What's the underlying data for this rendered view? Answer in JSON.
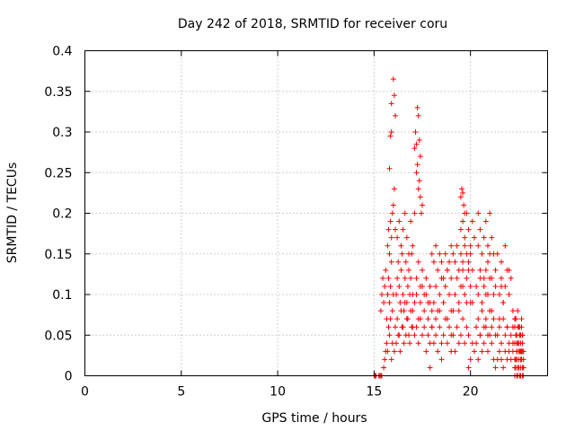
{
  "chart_data": {
    "type": "scatter",
    "title": "Day 242 of 2018, SRMTID for receiver coru",
    "xlabel": "GPS time / hours",
    "ylabel": "SRMTID / TECUs",
    "xlim": [
      0,
      24
    ],
    "ylim": [
      0,
      0.4
    ],
    "xticks": [
      0,
      5,
      10,
      15,
      20
    ],
    "xtick_labels": [
      "0",
      "5",
      "10",
      "15",
      "20"
    ],
    "yticks": [
      0,
      0.05,
      0.1,
      0.15,
      0.2,
      0.25,
      0.3,
      0.35,
      0.4
    ],
    "ytick_labels": [
      "0",
      "0.05",
      "0.1",
      "0.15",
      "0.2",
      "0.25",
      "0.3",
      "0.35",
      "0.4"
    ],
    "grid": true,
    "marker": "plus",
    "color": "#ff0000",
    "series": [
      {
        "name": "SRMTID",
        "x": [
          15.0,
          15.05,
          15.1,
          15.25,
          15.3,
          15.35,
          15.4,
          15.5,
          15.55,
          15.6,
          15.65,
          15.7,
          15.75,
          15.8,
          15.85,
          15.9,
          15.95,
          15.35,
          15.4,
          15.45,
          15.5,
          15.55,
          15.6,
          15.65,
          15.7,
          15.75,
          15.8,
          15.85,
          15.9,
          15.95,
          16.0,
          15.7,
          15.75,
          15.8,
          15.85,
          15.9,
          15.95,
          16.0,
          16.05,
          16.1,
          15.8,
          15.85,
          15.9,
          15.9,
          16.0,
          16.05,
          16.1,
          16.15,
          16.2,
          16.25,
          16.3,
          16.35,
          16.4,
          16.45,
          16.5,
          16.55,
          16.6,
          16.65,
          16.7,
          16.75,
          16.8,
          16.85,
          16.9,
          16.95,
          17.0,
          16.1,
          16.2,
          16.3,
          16.4,
          16.5,
          16.6,
          16.7,
          16.8,
          16.9,
          17.0,
          16.2,
          16.3,
          16.4,
          16.5,
          16.6,
          16.7,
          16.8,
          16.9,
          17.0,
          17.1,
          16.05,
          16.15,
          16.25,
          16.35,
          16.45,
          16.55,
          16.65,
          16.75,
          16.85,
          16.95,
          17.1,
          17.15,
          17.2,
          17.25,
          17.3,
          17.35,
          17.4,
          17.2,
          17.25,
          17.3,
          17.35,
          17.4,
          17.45,
          17.5,
          17.2,
          17.3,
          17.4,
          17.5,
          17.6,
          17.7,
          17.8,
          17.9,
          18.0,
          17.1,
          17.2,
          17.3,
          17.4,
          17.5,
          17.6,
          17.7,
          17.8,
          17.9,
          18.0,
          17.0,
          17.1,
          17.2,
          17.3,
          17.4,
          17.5,
          17.6,
          17.7,
          17.8,
          17.9,
          18.0,
          18.1,
          18.2,
          18.3,
          18.4,
          18.5,
          18.6,
          18.7,
          18.8,
          18.9,
          19.0,
          18.1,
          18.2,
          18.3,
          18.4,
          18.5,
          18.6,
          18.7,
          18.8,
          18.9,
          19.0,
          18.0,
          18.1,
          18.2,
          18.3,
          18.4,
          18.5,
          18.6,
          18.7,
          18.8,
          18.9,
          19.0,
          18.2,
          18.4,
          18.6,
          18.8,
          19.0,
          17.9,
          18.5,
          19.0,
          19.1,
          19.2,
          19.3,
          19.4,
          19.5,
          19.6,
          19.7,
          19.8,
          19.9,
          20.0,
          20.1,
          19.5,
          19.55,
          19.6,
          19.65,
          19.7,
          19.5,
          19.6,
          19.7,
          19.8,
          19.9,
          20.0,
          20.1,
          20.2,
          19.1,
          19.2,
          19.3,
          19.4,
          19.5,
          19.6,
          19.7,
          19.8,
          19.9,
          20.0,
          20.1,
          19.1,
          19.2,
          19.3,
          19.4,
          19.5,
          19.6,
          19.7,
          19.8,
          19.9,
          20.0,
          19.2,
          19.4,
          19.6,
          19.8,
          20.0,
          19.9,
          20.1,
          20.3,
          20.4,
          20.5,
          20.6,
          20.7,
          20.8,
          20.9,
          21.0,
          21.1,
          21.2,
          20.4,
          20.5,
          20.6,
          20.7,
          20.8,
          20.9,
          21.0,
          21.1,
          21.2,
          21.3,
          20.3,
          20.4,
          20.5,
          20.6,
          20.7,
          20.8,
          20.9,
          21.0,
          21.1,
          21.2,
          21.3,
          20.2,
          20.3,
          20.4,
          20.5,
          20.6,
          20.7,
          20.8,
          20.9,
          21.0,
          21.1,
          21.2,
          20.5,
          20.7,
          20.9,
          21.1,
          21.3,
          20.4,
          21.0,
          20.8,
          21.5,
          21.6,
          21.7,
          21.8,
          21.9,
          22.0,
          22.1,
          22.2,
          21.4,
          21.5,
          21.6,
          21.7,
          21.8,
          21.9,
          22.0,
          22.1,
          22.2,
          21.3,
          21.4,
          21.5,
          21.6,
          21.7,
          21.8,
          21.9,
          22.0,
          22.1,
          22.2,
          21.4,
          21.6,
          21.8,
          22.0,
          21.5,
          21.7,
          21.9,
          21.6,
          22.3,
          22.35,
          22.4,
          22.45,
          22.5,
          22.55,
          22.6,
          22.65,
          22.7,
          22.75,
          22.3,
          22.35,
          22.4,
          22.45,
          22.5,
          22.55,
          22.6,
          22.65,
          22.7,
          22.75,
          22.3,
          22.35,
          22.4,
          22.45,
          22.5,
          22.55,
          22.6,
          22.65,
          22.7,
          22.75,
          22.3,
          22.35,
          22.4,
          22.45,
          22.5,
          22.55,
          22.6,
          22.65,
          22.7,
          22.75,
          22.3,
          22.4,
          22.5,
          22.6,
          22.7,
          22.75,
          22.35,
          22.45,
          22.55,
          22.65,
          22.7,
          22.4,
          22.5,
          22.6,
          22.2,
          22.3
        ],
        "y": [
          0.0,
          0.0,
          0.0,
          0.0,
          0.0,
          0.0,
          0.0,
          0.01,
          0.02,
          0.03,
          0.04,
          0.03,
          0.06,
          0.05,
          0.07,
          0.02,
          0.04,
          0.08,
          0.1,
          0.12,
          0.09,
          0.11,
          0.13,
          0.07,
          0.1,
          0.12,
          0.09,
          0.11,
          0.14,
          0.08,
          0.1,
          0.16,
          0.18,
          0.15,
          0.19,
          0.17,
          0.2,
          0.21,
          0.23,
          0.18,
          0.255,
          0.295,
          0.3,
          0.335,
          0.365,
          0.345,
          0.32,
          0.1,
          0.12,
          0.14,
          0.11,
          0.09,
          0.13,
          0.15,
          0.1,
          0.08,
          0.12,
          0.14,
          0.09,
          0.11,
          0.13,
          0.1,
          0.12,
          0.15,
          0.1,
          0.06,
          0.07,
          0.05,
          0.08,
          0.06,
          0.09,
          0.07,
          0.05,
          0.08,
          0.06,
          0.17,
          0.19,
          0.16,
          0.18,
          0.2,
          0.17,
          0.15,
          0.19,
          0.16,
          0.2,
          0.03,
          0.04,
          0.05,
          0.03,
          0.06,
          0.04,
          0.05,
          0.07,
          0.04,
          0.06,
          0.28,
          0.3,
          0.285,
          0.33,
          0.32,
          0.29,
          0.27,
          0.25,
          0.26,
          0.23,
          0.24,
          0.22,
          0.2,
          0.21,
          0.12,
          0.14,
          0.11,
          0.13,
          0.1,
          0.12,
          0.09,
          0.11,
          0.08,
          0.05,
          0.06,
          0.04,
          0.07,
          0.05,
          0.06,
          0.03,
          0.05,
          0.04,
          0.06,
          0.08,
          0.09,
          0.1,
          0.07,
          0.09,
          0.11,
          0.08,
          0.1,
          0.07,
          0.09,
          0.06,
          0.09,
          0.11,
          0.08,
          0.1,
          0.12,
          0.09,
          0.11,
          0.13,
          0.1,
          0.12,
          0.04,
          0.05,
          0.03,
          0.06,
          0.04,
          0.05,
          0.07,
          0.04,
          0.06,
          0.05,
          0.15,
          0.14,
          0.16,
          0.13,
          0.15,
          0.14,
          0.12,
          0.15,
          0.13,
          0.14,
          0.16,
          0.07,
          0.08,
          0.09,
          0.07,
          0.08,
          0.01,
          0.02,
          0.03,
          0.08,
          0.1,
          0.12,
          0.09,
          0.11,
          0.13,
          0.1,
          0.12,
          0.14,
          0.11,
          0.13,
          0.22,
          0.23,
          0.225,
          0.21,
          0.2,
          0.18,
          0.19,
          0.17,
          0.2,
          0.18,
          0.16,
          0.19,
          0.17,
          0.15,
          0.14,
          0.16,
          0.13,
          0.15,
          0.14,
          0.16,
          0.15,
          0.13,
          0.15,
          0.04,
          0.05,
          0.03,
          0.06,
          0.04,
          0.05,
          0.07,
          0.04,
          0.06,
          0.05,
          0.09,
          0.1,
          0.08,
          0.11,
          0.09,
          0.02,
          0.01,
          0.09,
          0.11,
          0.1,
          0.12,
          0.09,
          0.11,
          0.13,
          0.1,
          0.12,
          0.08,
          0.1,
          0.16,
          0.18,
          0.15,
          0.17,
          0.19,
          0.16,
          0.2,
          0.17,
          0.15,
          0.13,
          0.06,
          0.07,
          0.05,
          0.08,
          0.06,
          0.07,
          0.05,
          0.08,
          0.06,
          0.07,
          0.05,
          0.03,
          0.04,
          0.02,
          0.05,
          0.03,
          0.04,
          0.06,
          0.03,
          0.05,
          0.04,
          0.02,
          0.13,
          0.12,
          0.14,
          0.12,
          0.11,
          0.2,
          0.15,
          0.1,
          0.1,
          0.12,
          0.09,
          0.11,
          0.13,
          0.1,
          0.12,
          0.08,
          0.05,
          0.06,
          0.04,
          0.07,
          0.05,
          0.06,
          0.03,
          0.05,
          0.04,
          0.01,
          0.02,
          0.03,
          0.02,
          0.01,
          0.03,
          0.02,
          0.04,
          0.02,
          0.03,
          0.15,
          0.14,
          0.16,
          0.13,
          0.07,
          0.09,
          0.06,
          0.11,
          0.0,
          0.01,
          0.02,
          0.0,
          0.01,
          0.03,
          0.0,
          0.02,
          0.01,
          0.0,
          0.04,
          0.05,
          0.03,
          0.06,
          0.04,
          0.05,
          0.03,
          0.06,
          0.04,
          0.03,
          0.01,
          0.02,
          0.0,
          0.01,
          0.02,
          0.0,
          0.01,
          0.02,
          0.0,
          0.01,
          0.06,
          0.07,
          0.05,
          0.04,
          0.06,
          0.05,
          0.04,
          0.03,
          0.05,
          0.02,
          0.02,
          0.03,
          0.01,
          0.02,
          0.03,
          0.01,
          0.07,
          0.08,
          0.06,
          0.07,
          0.05,
          0.04,
          0.03,
          0.05,
          0.06,
          0.07
        ]
      }
    ]
  }
}
